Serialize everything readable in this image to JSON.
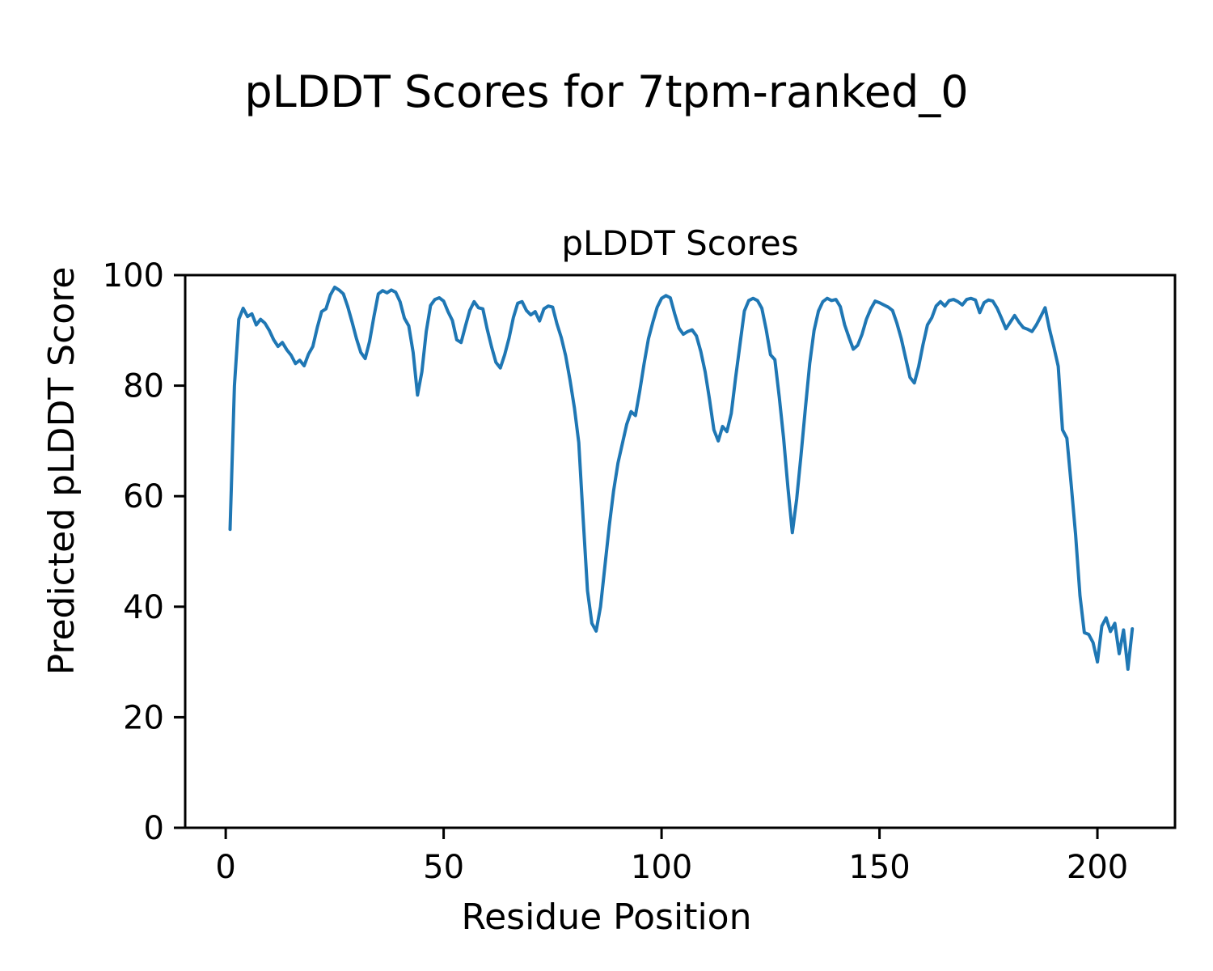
{
  "figure_title": "pLDDT Scores for 7tpm-ranked_0",
  "chart_data": {
    "type": "line",
    "title": "pLDDT Scores",
    "xlabel": "Residue Position",
    "ylabel": "Predicted pLDDT Score",
    "x_start": 1,
    "x_step": 1,
    "values": [
      54,
      80,
      92,
      94,
      92.5,
      93,
      91,
      92,
      91.3,
      90,
      88.3,
      87.1,
      87.8,
      86.5,
      85.5,
      84,
      84.6,
      83.6,
      85.7,
      87.1,
      90.5,
      93.4,
      93.9,
      96.4,
      97.8,
      97.3,
      96.6,
      94.3,
      91.5,
      88.5,
      86,
      84.9,
      88,
      92.5,
      96.6,
      97.2,
      96.8,
      97.3,
      96.9,
      95.2,
      92.2,
      90.8,
      86,
      78.3,
      82.5,
      89.8,
      94.5,
      95.6,
      95.9,
      95.3,
      93.4,
      91.8,
      88.3,
      87.8,
      90.8,
      93.6,
      95.2,
      94.1,
      93.9,
      90.2,
      87,
      84.2,
      83.2,
      85.6,
      88.6,
      92.3,
      94.9,
      95.2,
      93.6,
      92.8,
      93.4,
      91.7,
      93.9,
      94.4,
      94.2,
      91.2,
      88.7,
      85.4,
      81,
      76,
      69.7,
      56,
      42.9,
      37,
      35.6,
      40,
      47.3,
      54.6,
      61,
      66,
      69.5,
      73,
      75.3,
      74.6,
      79,
      84,
      88.5,
      91.5,
      94.2,
      95.8,
      96.3,
      95.9,
      93,
      90.4,
      89.3,
      89.8,
      90.1,
      89,
      86.2,
      82.5,
      77.5,
      72,
      70,
      72.6,
      71.7,
      75,
      81.5,
      87.5,
      93.5,
      95.4,
      95.8,
      95.4,
      94,
      90.2,
      85.6,
      84.7,
      78,
      70.5,
      61.5,
      53.4,
      59.5,
      67.5,
      76,
      84,
      90,
      93.5,
      95.2,
      95.8,
      95.4,
      95.6,
      94.3,
      91,
      88.7,
      86.6,
      87.3,
      89.3,
      92,
      93.9,
      95.3,
      95,
      94.6,
      94.2,
      93.6,
      91.3,
      88.5,
      85,
      81.5,
      80.5,
      83.5,
      87.5,
      91,
      92.3,
      94.4,
      95.2,
      94.4,
      95.4,
      95.6,
      95.2,
      94.6,
      95.6,
      95.8,
      95.5,
      93.2,
      95,
      95.5,
      95.3,
      94,
      92.2,
      90.3,
      91.5,
      92.7,
      91.5,
      90.5,
      90.2,
      89.8,
      91,
      92.5,
      94.1,
      90.2,
      87,
      83.5,
      72,
      70.5,
      62,
      53,
      42,
      35.3,
      35,
      33.5,
      30,
      36.5,
      38,
      35.5,
      37,
      31.5,
      35.8,
      28.7,
      36
    ],
    "xticks": [
      "0",
      "50",
      "100",
      "150",
      "200"
    ],
    "yticks": [
      "0",
      "20",
      "40",
      "60",
      "80",
      "100"
    ],
    "xlim": [
      -9.3,
      217.8
    ],
    "ylim": [
      0,
      100
    ],
    "line_color": "#1f77b4",
    "axis_color": "#000000",
    "grid": false,
    "legend_position": "none"
  }
}
